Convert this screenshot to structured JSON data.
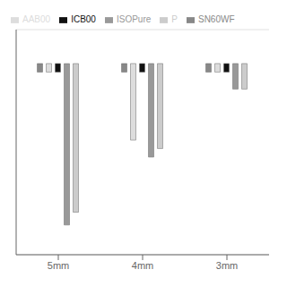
{
  "chart_data": {
    "type": "bar",
    "categories": [
      "5mm",
      "4mm",
      "3mm"
    ],
    "series": [
      {
        "name": "SN60WF",
        "color": "#888888",
        "values": [
          [
            -0.02,
            0.0
          ],
          [
            -0.02,
            0.0
          ],
          [
            -0.02,
            0.0
          ]
        ]
      },
      {
        "name": "AAB00",
        "color": "#dddddd",
        "values": [
          [
            -0.02,
            0.0
          ],
          [
            -0.18,
            0.0
          ],
          [
            -0.02,
            0.0
          ]
        ]
      },
      {
        "name": "ICB00",
        "color": "#111111",
        "values": [
          [
            -0.02,
            0.0
          ],
          [
            -0.02,
            0.0
          ],
          [
            -0.02,
            0.0
          ]
        ]
      },
      {
        "name": "ISOPure",
        "color": "#999999",
        "values": [
          [
            -0.38,
            0.0
          ],
          [
            -0.22,
            0.0
          ],
          [
            -0.06,
            0.0
          ]
        ]
      },
      {
        "name": "P",
        "color": "#cccccc",
        "values": [
          [
            -0.35,
            0.0
          ],
          [
            -0.2,
            0.0
          ],
          [
            -0.06,
            0.0
          ]
        ]
      }
    ],
    "ylim": [
      -0.45,
      0.08
    ],
    "yticks": [
      -0.4,
      -0.3,
      -0.2,
      -0.1,
      0.0
    ],
    "grid": true,
    "legend": "upper left",
    "tick_labels": "x"
  }
}
